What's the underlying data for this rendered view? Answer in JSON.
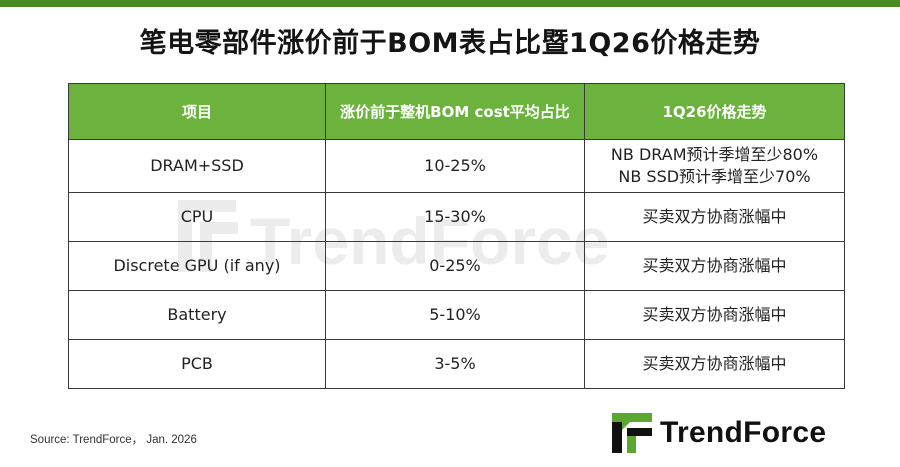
{
  "title": "笔电零部件涨价前于BOM表占比暨1Q26价格走势",
  "table": {
    "headers": [
      "项目",
      "涨价前于整机BOM cost平均占比",
      "1Q26价格走势"
    ],
    "rows": [
      {
        "item": "DRAM+SSD",
        "share": "10-25%",
        "trend_line1": "NB DRAM预计季增至少80%",
        "trend_line2": "NB SSD预计季增至少70%"
      },
      {
        "item": "CPU",
        "share": "15-30%",
        "trend_line1": "买卖双方协商涨幅中",
        "trend_line2": ""
      },
      {
        "item": "Discrete GPU (if any)",
        "share": "0-25%",
        "trend_line1": "买卖双方协商涨幅中",
        "trend_line2": ""
      },
      {
        "item": "Battery",
        "share": "5-10%",
        "trend_line1": "买卖双方协商涨幅中",
        "trend_line2": ""
      },
      {
        "item": "PCB",
        "share": "3-5%",
        "trend_line1": "买卖双方协商涨幅中",
        "trend_line2": ""
      }
    ]
  },
  "watermark_text": "TrendForce",
  "source": "Source: TrendForce， Jan. 2026",
  "logo": {
    "text": "TrendForce",
    "icon": "trendforce-logo-icon"
  },
  "colors": {
    "top_bar": "#4a8a22",
    "header_bg": "#6cb33e",
    "logo_green": "#5aa832",
    "logo_dark": "#111111"
  }
}
